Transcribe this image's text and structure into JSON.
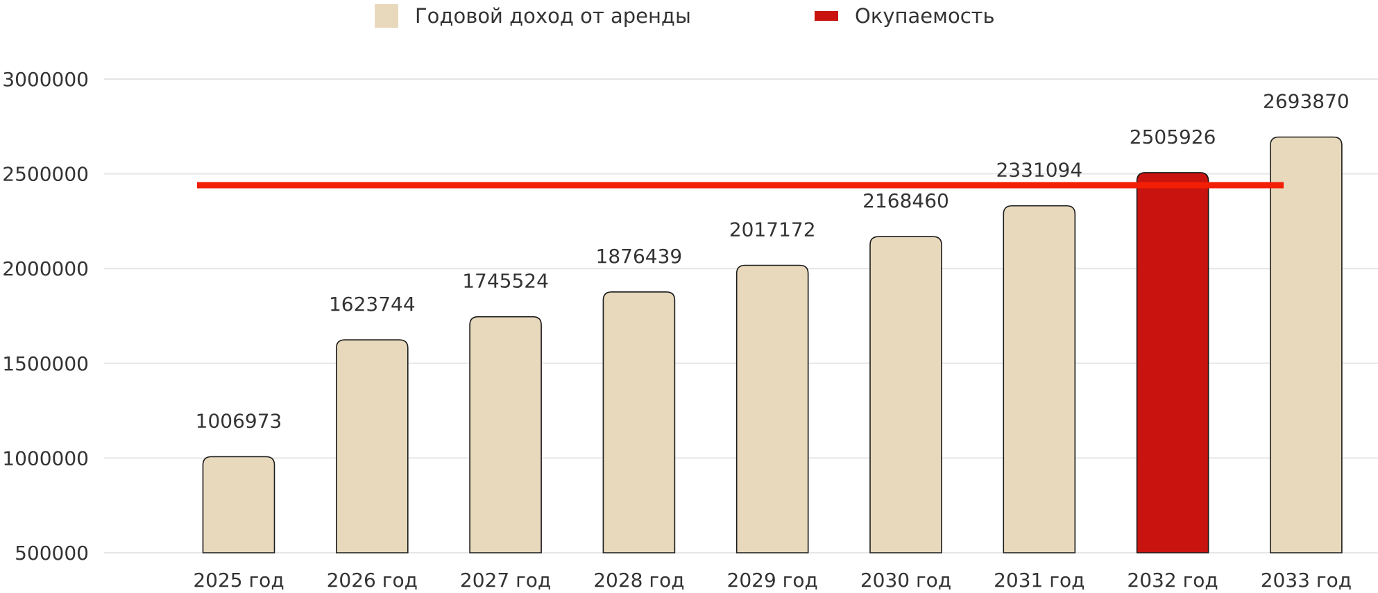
{
  "colors": {
    "bar": "#e8d9bd",
    "highlight": "#c8130f",
    "line": "#f21e06",
    "grid": "#e6e6e6",
    "text": "#333333"
  },
  "legend": {
    "bar_label": "Годовой доход от аренды",
    "line_label": "Окупаемость"
  },
  "chart_data": {
    "type": "bar",
    "title": "",
    "xlabel": "",
    "ylabel": "",
    "ylim": [
      500000,
      3000000
    ],
    "yticks": [
      500000,
      1000000,
      1500000,
      2000000,
      2500000,
      3000000
    ],
    "ytick_labels": [
      "500000",
      "1000000",
      "1500000",
      "2000000",
      "2500000",
      "3000000"
    ],
    "grid": true,
    "legend_position": "top-center",
    "categories": [
      "2025 год",
      "2026 год",
      "2027 год",
      "2028 год",
      "2029 год",
      "2030 год",
      "2031 год",
      "2032 год",
      "2033 год"
    ],
    "series": [
      {
        "name": "Годовой доход от аренды",
        "values": [
          1006973,
          1623744,
          1745524,
          1876439,
          2017172,
          2168460,
          2331094,
          2505926,
          2693870
        ],
        "data_labels": [
          "1006973",
          "1623744",
          "1745524",
          "1876439",
          "2017172",
          "2168460",
          "2331094",
          "2505926",
          "2693870"
        ],
        "highlight_index": 7
      },
      {
        "name": "Окупаемость",
        "type": "line",
        "value": 2440000
      }
    ]
  }
}
